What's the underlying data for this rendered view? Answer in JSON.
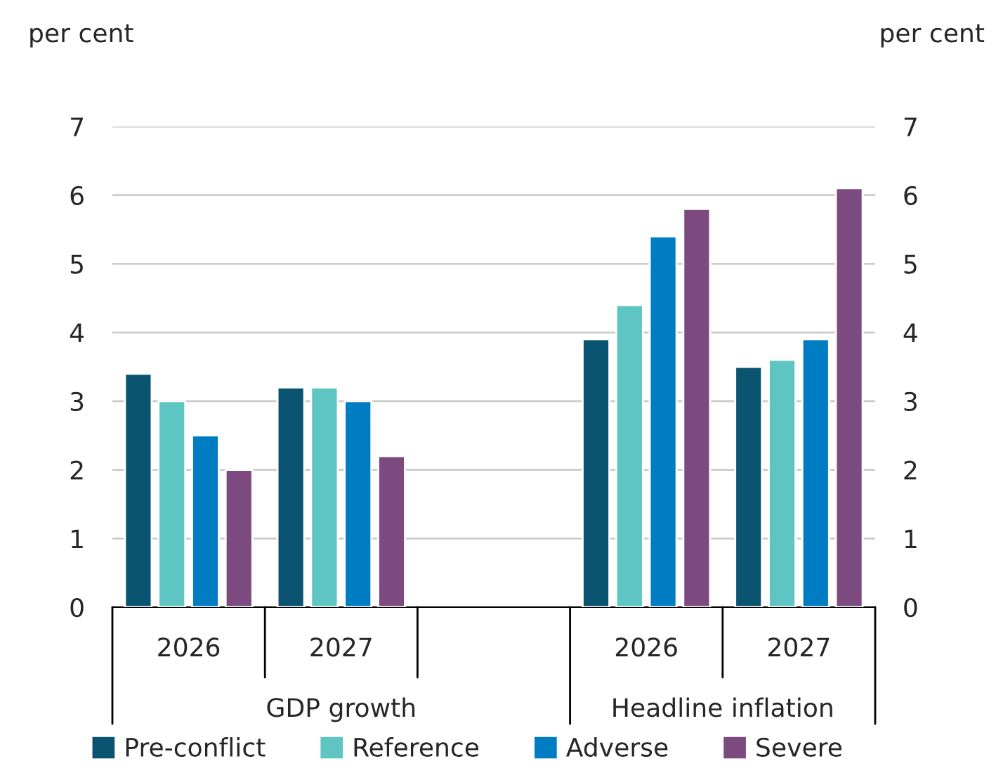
{
  "chart_data": {
    "type": "bar",
    "categories": [
      "2026",
      "2027",
      null,
      "2026",
      "2027"
    ],
    "series": [
      {
        "name": "Pre-conflict",
        "color": "#0b5471",
        "values": [
          3.4,
          3.2,
          null,
          3.9,
          3.5
        ]
      },
      {
        "name": "Reference",
        "color": "#5ec5c2",
        "values": [
          3.0,
          3.2,
          null,
          4.4,
          3.6
        ]
      },
      {
        "name": "Adverse",
        "color": "#007cc3",
        "values": [
          2.5,
          3.0,
          null,
          5.4,
          3.9
        ]
      },
      {
        "name": "Severe",
        "color": "#7d4a80",
        "values": [
          2.0,
          2.2,
          null,
          5.8,
          6.1
        ]
      }
    ],
    "ylabel": "per cent",
    "y2label": "per cent",
    "ylim": [
      0,
      7
    ],
    "yticks": [
      0,
      1,
      2,
      3,
      4,
      5,
      6,
      7
    ],
    "y2lim": [
      0,
      7
    ],
    "y2ticks": [
      0,
      1,
      2,
      3,
      4,
      5,
      6,
      7
    ],
    "annotations": [
      "GDP growth",
      "Headline inflation"
    ],
    "grid": "y",
    "legend": "bottom"
  }
}
